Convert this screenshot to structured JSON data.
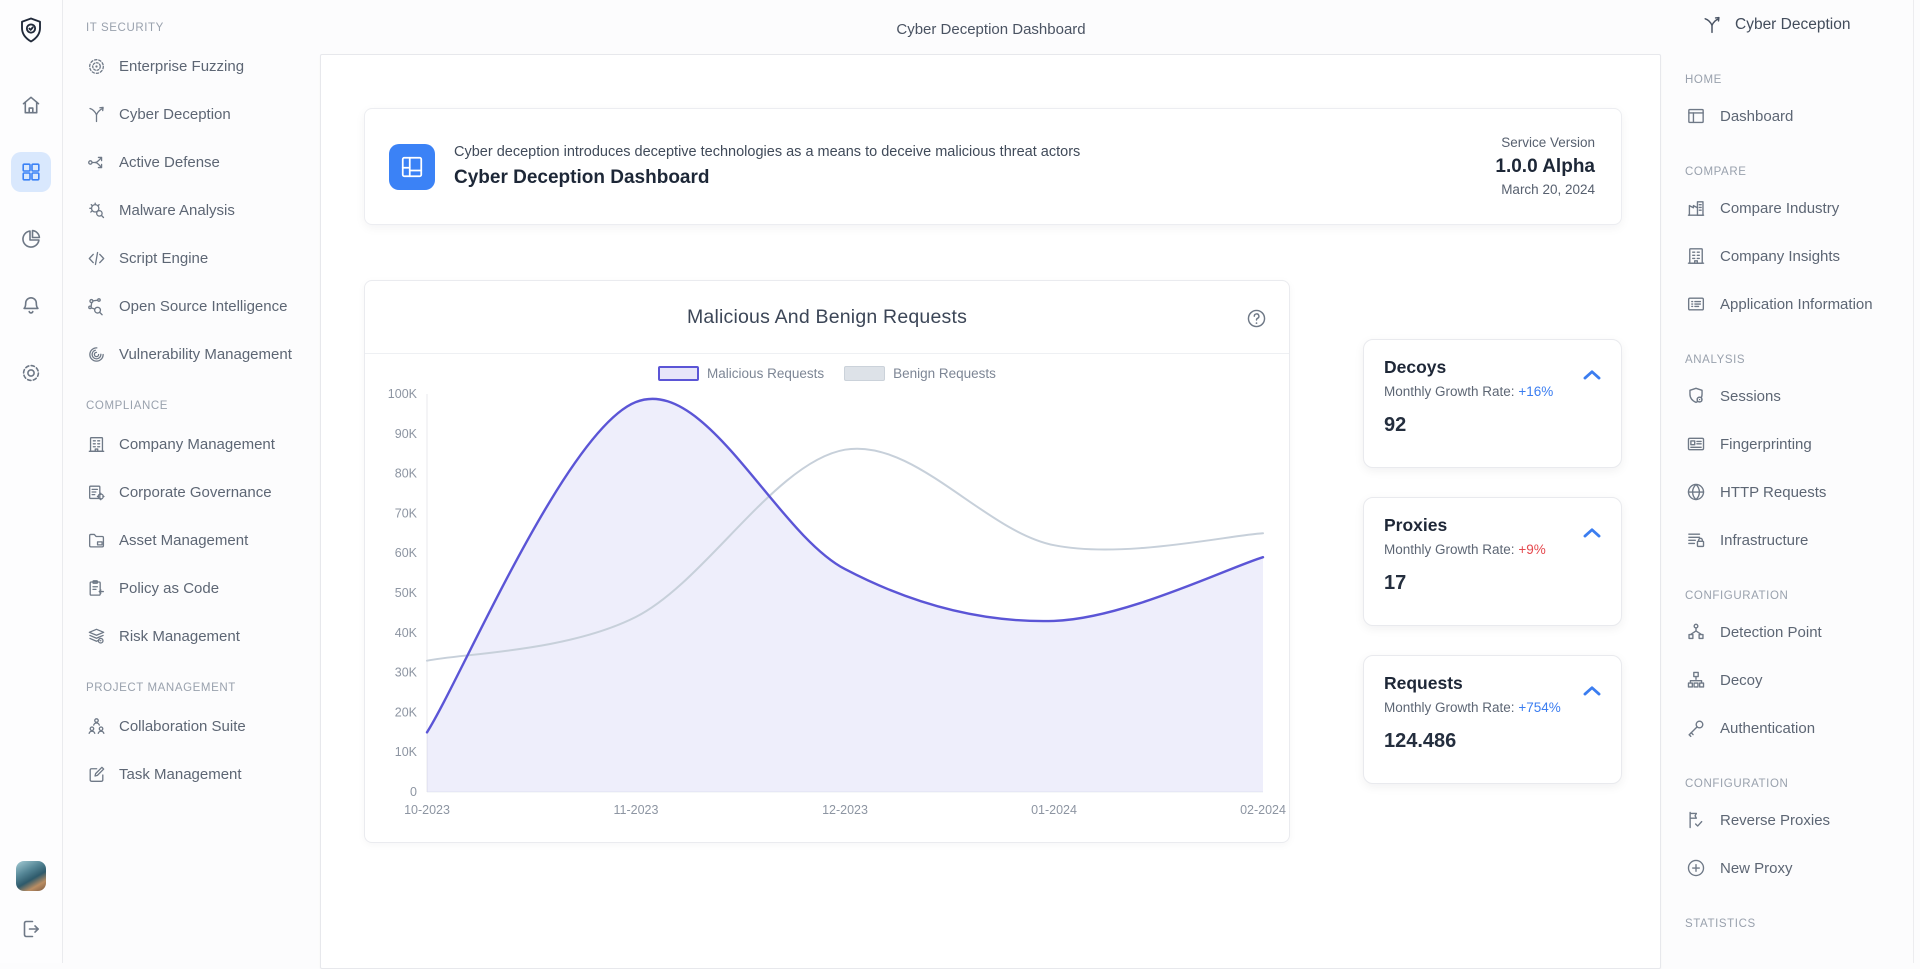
{
  "app": {
    "page_title": "Cyber Deception Dashboard"
  },
  "rail": {
    "logo_icon": "shield-check-icon",
    "nav": [
      {
        "name": "home",
        "icon": "home-icon",
        "active": false
      },
      {
        "name": "apps",
        "icon": "grid-icon",
        "active": true
      },
      {
        "name": "analytics",
        "icon": "pie-chart-icon",
        "active": false
      },
      {
        "name": "notifications",
        "icon": "bell-icon",
        "active": false
      },
      {
        "name": "settings",
        "icon": "gear-icon",
        "active": false
      }
    ],
    "logout_icon": "logout-icon"
  },
  "left_sidebar": {
    "sections": [
      {
        "label": "IT SECURITY",
        "items": [
          {
            "label": "Enterprise Fuzzing",
            "icon": "target-icon"
          },
          {
            "label": "Cyber Deception",
            "icon": "branch-arrow-icon"
          },
          {
            "label": "Active Defense",
            "icon": "route-arrows-icon"
          },
          {
            "label": "Malware Analysis",
            "icon": "bug-search-icon"
          },
          {
            "label": "Script Engine",
            "icon": "code-icon"
          },
          {
            "label": "Open Source Intelligence",
            "icon": "network-search-icon"
          },
          {
            "label": "Vulnerability Management",
            "icon": "fingerprint-icon"
          }
        ]
      },
      {
        "label": "COMPLIANCE",
        "items": [
          {
            "label": "Company Management",
            "icon": "office-building-icon"
          },
          {
            "label": "Corporate Governance",
            "icon": "document-gear-icon"
          },
          {
            "label": "Asset Management",
            "icon": "folder-icon"
          },
          {
            "label": "Policy as Code",
            "icon": "clipboard-arrow-icon"
          },
          {
            "label": "Risk Management",
            "icon": "layers-eye-icon"
          }
        ]
      },
      {
        "label": "PROJECT MANAGEMENT",
        "items": [
          {
            "label": "Collaboration Suite",
            "icon": "org-people-icon"
          },
          {
            "label": "Task Management",
            "icon": "edit-square-icon"
          }
        ]
      }
    ]
  },
  "info_card": {
    "icon": "info-dashboard-icon",
    "icon_bg": "#3b82f6",
    "description": "Cyber deception introduces deceptive technologies as a means to deceive malicious threat actors",
    "title": "Cyber Deception Dashboard",
    "version_label": "Service Version",
    "version": "1.0.0 Alpha",
    "date": "March 20, 2024"
  },
  "chart_card": {
    "help_icon": "question-circle-icon"
  },
  "chart_data": {
    "type": "area",
    "title": "Malicious And Benign Requests",
    "categories": [
      "10-2023",
      "11-2023",
      "12-2023",
      "01-2024",
      "02-2024"
    ],
    "series": [
      {
        "name": "Malicious Requests",
        "color": "#5b55d6",
        "area_fill": "rgba(91,85,214,0.10)",
        "swatch_fill": "#e7e5f9",
        "swatch_stroke": "#5b55d6",
        "swatch_border_px": 2,
        "values": [
          15000,
          98000,
          56000,
          43000,
          59000
        ]
      },
      {
        "name": "Benign Requests",
        "color": "#c7d0da",
        "area_fill": null,
        "swatch_fill": "#dde2e8",
        "swatch_stroke": "#cbd2da",
        "swatch_border_px": 1,
        "values": [
          33000,
          44000,
          86000,
          62000,
          65000
        ]
      }
    ],
    "ylim": [
      0,
      100000
    ],
    "ytick_step": 10000,
    "grid": false,
    "legend_position": "top"
  },
  "stat_cards": [
    {
      "title": "Decoys",
      "growth_label": "Monthly Growth Rate:",
      "growth_value": "+16%",
      "growth_color": "#3b7df0",
      "value": "92"
    },
    {
      "title": "Proxies",
      "growth_label": "Monthly Growth Rate:",
      "growth_value": "+9%",
      "growth_color": "#e5484d",
      "value": "17"
    },
    {
      "title": "Requests",
      "growth_label": "Monthly Growth Rate:",
      "growth_value": "+754%",
      "growth_color": "#3b7df0",
      "value": "124.486"
    }
  ],
  "right_sidebar": {
    "title": "Cyber Deception",
    "title_icon": "branch-arrow-icon",
    "sections": [
      {
        "label": "HOME",
        "items": [
          {
            "label": "Dashboard",
            "icon": "dashboard-layout-icon"
          }
        ]
      },
      {
        "label": "COMPARE",
        "items": [
          {
            "label": "Compare Industry",
            "icon": "industry-buildings-icon"
          },
          {
            "label": "Company Insights",
            "icon": "office-building-icon"
          },
          {
            "label": "Application Information",
            "icon": "list-details-icon"
          }
        ]
      },
      {
        "label": "ANALYSIS",
        "items": [
          {
            "label": "Sessions",
            "icon": "shield-session-icon"
          },
          {
            "label": "Fingerprinting",
            "icon": "id-card-icon"
          },
          {
            "label": "HTTP Requests",
            "icon": "globe-icon"
          },
          {
            "label": "Infrastructure",
            "icon": "server-lock-icon"
          }
        ]
      },
      {
        "label": "CONFIGURATION",
        "items": [
          {
            "label": "Detection Point",
            "icon": "detection-nodes-icon"
          },
          {
            "label": "Decoy",
            "icon": "sitemap-icon"
          },
          {
            "label": "Authentication",
            "icon": "key-icon"
          }
        ]
      },
      {
        "label": "CONFIGURATION",
        "items": [
          {
            "label": "Reverse Proxies",
            "icon": "flag-check-icon"
          },
          {
            "label": "New Proxy",
            "icon": "plus-circle-icon"
          }
        ]
      },
      {
        "label": "STATISTICS",
        "items": []
      }
    ]
  },
  "colors": {
    "accent_blue": "#3b82f6",
    "growth_up_blue": "#3b7df0",
    "growth_down_red": "#e5484d",
    "malicious_line": "#5b55d6",
    "benign_line": "#c7d0da"
  }
}
